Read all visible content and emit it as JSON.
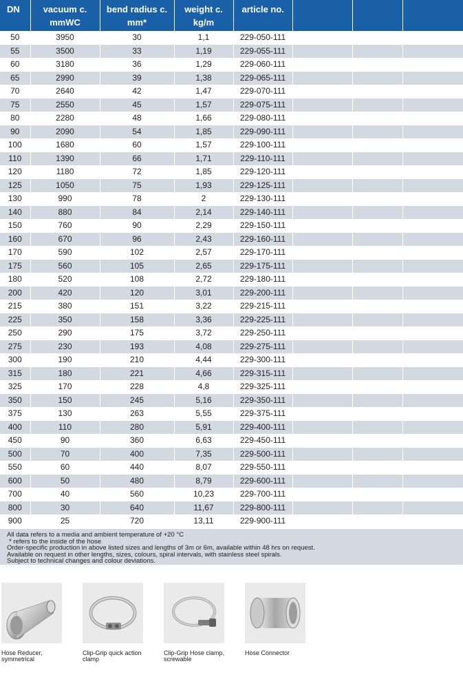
{
  "table": {
    "headers": [
      {
        "line1": "DN",
        "line2": ""
      },
      {
        "line1": "vacuum c.",
        "line2": "mmWC"
      },
      {
        "line1": "bend radius c.",
        "line2": "mm*"
      },
      {
        "line1": "weight c.",
        "line2": "kg/m"
      },
      {
        "line1": "article no.",
        "line2": ""
      },
      {
        "line1": "",
        "line2": ""
      },
      {
        "line1": "",
        "line2": ""
      },
      {
        "line1": "",
        "line2": ""
      }
    ],
    "rows": [
      [
        "50",
        "3950",
        "30",
        "1,1",
        "229-050-111"
      ],
      [
        "55",
        "3500",
        "33",
        "1,19",
        "229-055-111"
      ],
      [
        "60",
        "3180",
        "36",
        "1,29",
        "229-060-111"
      ],
      [
        "65",
        "2990",
        "39",
        "1,38",
        "229-065-111"
      ],
      [
        "70",
        "2640",
        "42",
        "1,47",
        "229-070-111"
      ],
      [
        "75",
        "2550",
        "45",
        "1,57",
        "229-075-111"
      ],
      [
        "80",
        "2280",
        "48",
        "1,66",
        "229-080-111"
      ],
      [
        "90",
        "2090",
        "54",
        "1,85",
        "229-090-111"
      ],
      [
        "100",
        "1680",
        "60",
        "1,57",
        "229-100-111"
      ],
      [
        "110",
        "1390",
        "66",
        "1,71",
        "229-110-111"
      ],
      [
        "120",
        "1180",
        "72",
        "1,85",
        "229-120-111"
      ],
      [
        "125",
        "1050",
        "75",
        "1,93",
        "229-125-111"
      ],
      [
        "130",
        "990",
        "78",
        "2",
        "229-130-111"
      ],
      [
        "140",
        "880",
        "84",
        "2,14",
        "229-140-111"
      ],
      [
        "150",
        "760",
        "90",
        "2,29",
        "229-150-111"
      ],
      [
        "160",
        "670",
        "96",
        "2,43",
        "229-160-111"
      ],
      [
        "170",
        "590",
        "102",
        "2,57",
        "229-170-111"
      ],
      [
        "175",
        "560",
        "105",
        "2,65",
        "229-175-111"
      ],
      [
        "180",
        "520",
        "108",
        "2,72",
        "229-180-111"
      ],
      [
        "200",
        "420",
        "120",
        "3,01",
        "229-200-111"
      ],
      [
        "215",
        "380",
        "151",
        "3,22",
        "229-215-111"
      ],
      [
        "225",
        "350",
        "158",
        "3,36",
        "229-225-111"
      ],
      [
        "250",
        "290",
        "175",
        "3,72",
        "229-250-111"
      ],
      [
        "275",
        "230",
        "193",
        "4,08",
        "229-275-111"
      ],
      [
        "300",
        "190",
        "210",
        "4,44",
        "229-300-111"
      ],
      [
        "315",
        "180",
        "221",
        "4,66",
        "229-315-111"
      ],
      [
        "325",
        "170",
        "228",
        "4,8",
        "229-325-111"
      ],
      [
        "350",
        "150",
        "245",
        "5,16",
        "229-350-111"
      ],
      [
        "375",
        "130",
        "263",
        "5,55",
        "229-375-111"
      ],
      [
        "400",
        "110",
        "280",
        "5,91",
        "229-400-111"
      ],
      [
        "450",
        "90",
        "360",
        "6,63",
        "229-450-111"
      ],
      [
        "500",
        "70",
        "400",
        "7,35",
        "229-500-111"
      ],
      [
        "550",
        "60",
        "440",
        "8,07",
        "229-550-111"
      ],
      [
        "600",
        "50",
        "480",
        "8,79",
        "229-600-111"
      ],
      [
        "700",
        "40",
        "560",
        "10,23",
        "229-700-111"
      ],
      [
        "800",
        "30",
        "640",
        "11,67",
        "229-800-111"
      ],
      [
        "900",
        "25",
        "720",
        "13,11",
        "229-900-111"
      ]
    ]
  },
  "notes": [
    "All data refers to a media and ambient temperature of +20 °C",
    "* refers to the inside of the hose",
    "Order-specific production in above listed sizes and lengths of 3m or 6m, available within 48 hrs on request.",
    "Available on request in other lengths, sizes, colours, spiral intervals, with stainless steel spirals.",
    "Subject to technical changes and colour deviations."
  ],
  "accessories": [
    {
      "label_line1": "Hose Reducer,",
      "label_line2": "symmetrical",
      "icon": "hose-reducer-icon"
    },
    {
      "label_line1": "Clip-Grip quick action",
      "label_line2": "clamp",
      "icon": "quick-action-clamp-icon"
    },
    {
      "label_line1": "Clip-Grip Hose clamp,",
      "label_line2": "screwable",
      "icon": "screwable-hose-clamp-icon"
    },
    {
      "label_line1": "Hose Connector",
      "label_line2": "",
      "icon": "hose-connector-icon"
    }
  ],
  "colors": {
    "header": "#1a60a8",
    "stripe": "#d3d9e0",
    "text": "#222222"
  }
}
